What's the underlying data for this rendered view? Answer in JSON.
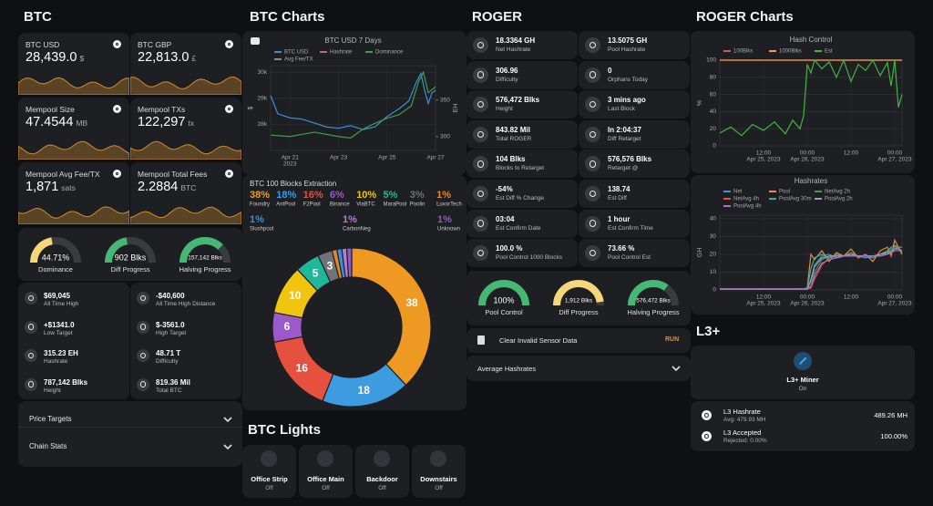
{
  "btc": {
    "title": "BTC",
    "tiles": [
      {
        "label": "BTC USD",
        "value": "28,439.0",
        "unit": "$"
      },
      {
        "label": "BTC GBP",
        "value": "22,813.0",
        "unit": "£"
      },
      {
        "label": "Mempool Size",
        "value": "47.4544",
        "unit": "MB"
      },
      {
        "label": "Mempool TXs",
        "value": "122,297",
        "unit": "tx"
      },
      {
        "label": "Mempool Avg Fee/TX",
        "value": "1,871",
        "unit": "sats"
      },
      {
        "label": "Mempool Total Fees",
        "value": "2.2884",
        "unit": "BTC"
      }
    ],
    "gauges": [
      {
        "value": "44.71%",
        "label": "Dominance",
        "percent": 44.71,
        "color": "#f3d77a"
      },
      {
        "value": "902 Blks",
        "label": "Diff Progress",
        "percent": 45,
        "color": "#46b876"
      },
      {
        "value": "157,142 Blks",
        "label": "Halving Progress",
        "percent": 75,
        "color": "#46b876"
      }
    ],
    "stats": [
      {
        "value": "$69,045",
        "label": "All Time High"
      },
      {
        "value": "-$40,600",
        "label": "All Time High Distance"
      },
      {
        "value": "+$1341.0",
        "label": "Low Target"
      },
      {
        "value": "$-3561.0",
        "label": "High Target"
      },
      {
        "value": "315.23 EH",
        "label": "Hashrate"
      },
      {
        "value": "48.71 T",
        "label": "Difficulty"
      },
      {
        "value": "787,142 Blks",
        "label": "Height"
      },
      {
        "value": "819.36 Mil",
        "label": "Total BTC"
      }
    ],
    "expanders": [
      "Price Targets",
      "Chain Stats"
    ]
  },
  "btc_charts": {
    "title": "BTC Charts",
    "price_chart": {
      "title": "BTC USD 7 Days",
      "ylabel": "$",
      "y2label": "EH",
      "xlim": [
        20.2,
        27.0
      ],
      "xticks": [
        {
          "value": 21,
          "label": "Apr 21"
        },
        {
          "value": 23,
          "label": "Apr 23"
        },
        {
          "value": 25,
          "label": "Apr 25"
        },
        {
          "value": 27,
          "label": "Apr 27"
        }
      ],
      "x_year": "2023",
      "ylim": [
        27000,
        30250
      ],
      "yticks": [
        {
          "value": 28000,
          "label": "28k"
        },
        {
          "value": 29000,
          "label": "29k"
        },
        {
          "value": 30000,
          "label": "30k"
        }
      ],
      "y2lim": [
        281,
        397
      ],
      "y2ticks": [
        300,
        350
      ],
      "series": [
        {
          "name": "BTC USD",
          "color": "#3b8fd9",
          "x": [
            20.2,
            20.5,
            21.0,
            21.5,
            22.0,
            22.5,
            23.0,
            23.5,
            24.0,
            24.5,
            25.0,
            25.5,
            25.9,
            26.2,
            26.4,
            26.55,
            26.7,
            26.85,
            27.0
          ],
          "values": [
            29100,
            28400,
            28250,
            28200,
            28050,
            27900,
            27850,
            27950,
            27800,
            27900,
            28300,
            28600,
            28900,
            29600,
            29950,
            29300,
            28800,
            29200,
            29300
          ]
        },
        {
          "name": "Hashrate",
          "color": "#c9676b"
        },
        {
          "name": "Dominance",
          "color": "#3aa04a",
          "axis": "y2",
          "x": [
            20.2,
            21.0,
            22.0,
            23.0,
            23.5,
            24.0,
            24.5,
            25.0,
            25.5,
            26.0,
            26.3,
            26.5,
            26.7,
            27.0
          ],
          "values": [
            302,
            300,
            306,
            300,
            298,
            310,
            318,
            325,
            330,
            342,
            375,
            388,
            360,
            368
          ]
        },
        {
          "name": "Avg Fee/TX",
          "color": "#8a8b90"
        }
      ]
    },
    "extraction": {
      "title": "BTC 100 Blocks Extraction",
      "categories": [
        "Foundry",
        "AntPool",
        "F2Pool",
        "Binance",
        "ViaBTC",
        "MaraPool",
        "Poolin",
        "LuxorTech",
        "Slushpool",
        "CarbonNeg",
        "Unknown"
      ],
      "values": [
        38,
        18,
        16,
        6,
        10,
        5,
        3,
        1,
        1,
        1,
        1
      ],
      "value_labels": [
        "38%",
        "18%",
        "16%",
        "6%",
        "10%",
        "5%",
        "3%",
        "1%",
        "1%",
        "1%",
        "1%"
      ],
      "colors": [
        "#ee9a22",
        "#3d9be0",
        "#e6503f",
        "#9b59c9",
        "#f1c40f",
        "#1fb89a",
        "#6f7479",
        "#e8852a",
        "#3b8fd9",
        "#b37ad8",
        "#8e5bc0"
      ]
    }
  },
  "btc_lights": {
    "title": "BTC Lights",
    "lights": [
      {
        "name": "Office Strip",
        "state": "Off"
      },
      {
        "name": "Office Main",
        "state": "Off"
      },
      {
        "name": "Backdoor",
        "state": "Off"
      },
      {
        "name": "Downstairs",
        "state": "Off"
      }
    ]
  },
  "roger": {
    "title": "ROGER",
    "tiles": [
      {
        "value": "18.3364 GH",
        "label": "Net Hashrate"
      },
      {
        "value": "13.5075 GH",
        "label": "Pool Hashrate"
      },
      {
        "value": "306.96",
        "label": "Difficulty"
      },
      {
        "value": "0",
        "label": "Orphans Today"
      },
      {
        "value": "576,472 Blks",
        "label": "Height"
      },
      {
        "value": "3 mins ago",
        "label": "Last Block"
      },
      {
        "value": "843.82 Mil",
        "label": "Total ROGER"
      },
      {
        "value": "In 2:04:37",
        "label": "Diff Retarget"
      },
      {
        "value": "104 Blks",
        "label": "Blocks to Retarget"
      },
      {
        "value": "576,576 Blks",
        "label": "Retarget @"
      },
      {
        "value": "-54%",
        "label": "Est Diff % Change"
      },
      {
        "value": "138.74",
        "label": "Est Diff"
      },
      {
        "value": "03:04",
        "label": "Est Confirm Date"
      },
      {
        "value": "1 hour",
        "label": "Est Confirm Time"
      },
      {
        "value": "100.0 %",
        "label": "Pool Control 1000 Blocks"
      },
      {
        "value": "73.66 %",
        "label": "Pool Control Est"
      }
    ],
    "gauges": [
      {
        "value": "100%",
        "label": "Pool Control",
        "percent": 100,
        "color": "#46b876"
      },
      {
        "value": "1,912 Blks",
        "label": "Diff Progress",
        "percent": 95,
        "color": "#f3d77a"
      },
      {
        "value": "576,472 Blks",
        "label": "Halving Progress",
        "percent": 70,
        "color": "#46b876"
      }
    ],
    "action": {
      "label": "Clear Invalid Sensor Data",
      "button": "RUN"
    },
    "expander": "Average Hashrates"
  },
  "roger_charts": {
    "title": "ROGER Charts",
    "hash_control": {
      "title": "Hash Control",
      "ylabel": "%",
      "xlim": [
        0,
        50
      ],
      "xticks": [
        {
          "value": 12,
          "label": "12:00"
        },
        {
          "value": 24,
          "label": "00:00"
        },
        {
          "value": 36,
          "label": "12:00"
        },
        {
          "value": 48,
          "label": "00:00"
        }
      ],
      "xdates": [
        {
          "value": 12,
          "label": "Apr 25, 2023"
        },
        {
          "value": 24,
          "label": "Apr 26, 2023"
        },
        {
          "value": 48,
          "label": "Apr 27, 2023"
        }
      ],
      "ylim": [
        0,
        100
      ],
      "yticks": [
        0,
        20,
        40,
        60,
        80,
        100
      ],
      "x": [
        0,
        3,
        6,
        9,
        12,
        15,
        18,
        20,
        22,
        23,
        24,
        25,
        26,
        28,
        30,
        32,
        34,
        36,
        38,
        40,
        42,
        44,
        46,
        47,
        48,
        49,
        50
      ],
      "series": [
        {
          "name": "100Blks",
          "color": "#e05050",
          "values": [
            100,
            100,
            100,
            100,
            100,
            100,
            100,
            100,
            100,
            100,
            100,
            100,
            100,
            100,
            100,
            100,
            100,
            100,
            100,
            100,
            100,
            100,
            100,
            100,
            100,
            100,
            100
          ]
        },
        {
          "name": "1000Blks",
          "color": "#f0a030",
          "values": [
            100,
            100,
            100,
            100,
            100,
            100,
            100,
            100,
            100,
            100,
            100,
            100,
            100,
            100,
            100,
            100,
            100,
            100,
            100,
            100,
            100,
            100,
            100,
            100,
            100,
            100,
            100
          ]
        },
        {
          "name": "Est",
          "color": "#3fb63f",
          "values": [
            15,
            22,
            12,
            25,
            18,
            28,
            14,
            30,
            20,
            35,
            95,
            85,
            100,
            90,
            98,
            80,
            100,
            75,
            95,
            88,
            100,
            82,
            97,
            70,
            100,
            45,
            60
          ]
        }
      ]
    },
    "hashrates": {
      "title": "Hashrates",
      "ylabel": "GH",
      "xlim": [
        0,
        50
      ],
      "xticks": [
        {
          "value": 12,
          "label": "12:00"
        },
        {
          "value": 24,
          "label": "00:00"
        },
        {
          "value": 36,
          "label": "12:00"
        },
        {
          "value": 48,
          "label": "00:00"
        }
      ],
      "xdates": [
        {
          "value": 12,
          "label": "Apr 25, 2023"
        },
        {
          "value": 24,
          "label": "Apr 26, 2023"
        },
        {
          "value": 48,
          "label": "Apr 27, 2023"
        }
      ],
      "ylim": [
        0,
        42
      ],
      "yticks": [
        0,
        10,
        20,
        30,
        40
      ],
      "x": [
        0,
        8,
        16,
        22,
        24,
        25,
        26,
        28,
        30,
        32,
        34,
        36,
        38,
        40,
        42,
        44,
        46,
        47,
        48,
        49,
        50
      ],
      "series": [
        {
          "name": "Net",
          "color": "#4a90d9",
          "values": [
            0.5,
            0.5,
            0.5,
            0.5,
            0.5,
            6,
            14,
            19,
            20,
            18,
            19,
            20,
            19,
            18,
            19,
            20,
            22,
            24,
            25,
            24,
            24
          ]
        },
        {
          "name": "Pool",
          "color": "#f08a30",
          "values": [
            0.5,
            0.5,
            0.5,
            0.5,
            1,
            20,
            17,
            22,
            16,
            21,
            19,
            23,
            18,
            20,
            16,
            22,
            24,
            19,
            28,
            24,
            20
          ]
        },
        {
          "name": "NetAvg 2h",
          "color": "#3aa04a",
          "values": [
            0.5,
            0.5,
            0.5,
            0.5,
            0.5,
            2,
            10,
            17,
            19,
            19,
            19,
            19,
            19,
            19,
            19,
            19,
            21,
            23,
            24,
            24,
            24
          ]
        },
        {
          "name": "NetAvg 4h",
          "color": "#e05050",
          "values": [
            0.5,
            0.5,
            0.5,
            0.5,
            0.5,
            1,
            6,
            14,
            18,
            19,
            19,
            19,
            19,
            19,
            19,
            19,
            20,
            22,
            23,
            24,
            24
          ]
        },
        {
          "name": "PoolAvg 30m",
          "color": "#2bb3a0",
          "values": [
            0.5,
            0.5,
            0.5,
            0.5,
            0.5,
            12,
            18,
            20,
            18,
            20,
            19,
            21,
            19,
            19,
            18,
            20,
            22,
            21,
            25,
            24,
            21
          ]
        },
        {
          "name": "PoolAvg 2h",
          "color": "#a0a0a8",
          "values": [
            0.5,
            0.5,
            0.5,
            0.5,
            0.5,
            5,
            13,
            18,
            19,
            19,
            19,
            20,
            19,
            19,
            19,
            20,
            21,
            21,
            23,
            23,
            22
          ]
        },
        {
          "name": "PoolAvg 4h",
          "color": "#b06cd0",
          "values": [
            0.5,
            0.5,
            0.5,
            0.5,
            0.5,
            2,
            8,
            15,
            17,
            18,
            19,
            19,
            19,
            19,
            19,
            19,
            20,
            21,
            22,
            22,
            22
          ]
        }
      ]
    }
  },
  "l3": {
    "title": "L3+",
    "miner": {
      "name": "L3+ Miner",
      "state": "On"
    },
    "rows": [
      {
        "label": "L3 Hashrate",
        "sub": "Avg: 479.93 MH",
        "value": "489.26 MH"
      },
      {
        "label": "L3 Accepted",
        "sub": "Rejected: 0.00%",
        "value": "100.00%"
      }
    ]
  }
}
